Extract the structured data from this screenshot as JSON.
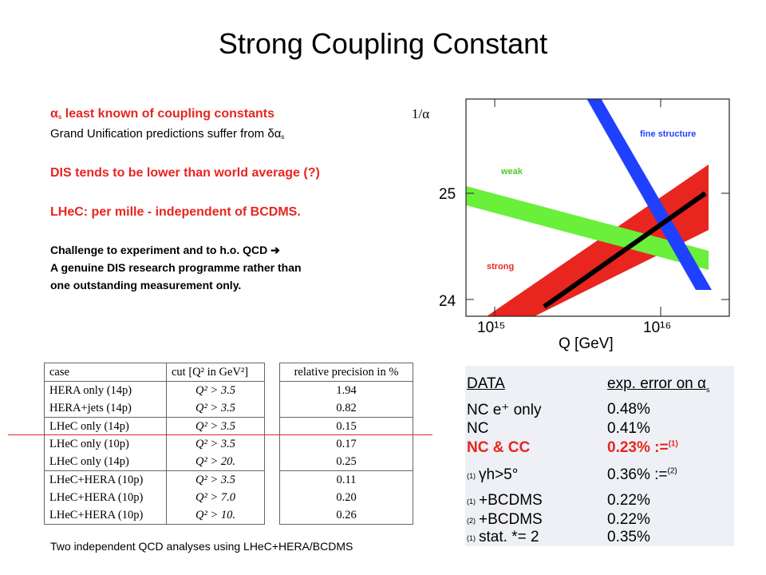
{
  "title": "Strong Coupling Constant",
  "left_text": {
    "line1": "least known of coupling constants",
    "line2": "Grand Unification predictions suffer from",
    "line3": "DIS tends to be lower than world average (?)",
    "line4": "LHeC: per mille  - independent of BCDMS.",
    "line5": "Challenge to experiment and to h.o. QCD",
    "line6": "A genuine DIS research programme rather than",
    "line7": "one outstanding measurement only."
  },
  "chart_data": {
    "type": "line",
    "ylabel": "1/α",
    "xlabel": "Q [GeV]",
    "xscale": "log",
    "x_ticks": [
      "10¹⁵",
      "10¹⁶"
    ],
    "y_ticks": [
      "25",
      "24"
    ],
    "series": [
      {
        "name": "fine structure",
        "color": "#2040ff"
      },
      {
        "name": "weak",
        "color": "#6aef3a"
      },
      {
        "name": "strong",
        "color": "#e8251f"
      }
    ]
  },
  "table1": {
    "headers": [
      "case",
      "cut [Q² in GeV²]"
    ],
    "rows": [
      [
        "HERA only (14p)",
        "Q² > 3.5"
      ],
      [
        "HERA+jets (14p)",
        "Q² > 3.5"
      ],
      [
        "LHeC only (14p)",
        "Q² > 3.5"
      ],
      [
        "LHeC only (10p)",
        "Q² > 3.5"
      ],
      [
        "LHeC only (14p)",
        "Q² > 20."
      ],
      [
        "LHeC+HERA (10p)",
        "Q² > 3.5"
      ],
      [
        "LHeC+HERA (10p)",
        "Q² > 7.0"
      ],
      [
        "LHeC+HERA (10p)",
        "Q² > 10."
      ]
    ]
  },
  "table2": {
    "header": "relative precision in %",
    "values": [
      "1.94",
      "0.82",
      "0.15",
      "0.17",
      "0.25",
      "0.11",
      "0.20",
      "0.26"
    ]
  },
  "caption": "Two independent QCD analyses using LHeC+HERA/BCDMS",
  "panel": {
    "h1": "DATA",
    "h2": "exp. error on α",
    "rows": [
      {
        "mark": "",
        "label": "NC e⁺ only",
        "value": "0.48%"
      },
      {
        "mark": "",
        "label": "NC",
        "value": "0.41%"
      },
      {
        "mark": "",
        "label": "NC & CC",
        "value": "0.23% :=",
        "sup": "(1)"
      },
      {
        "mark": "(1)",
        "label": "γh>5°",
        "value": "0.36% :=",
        "sup": "(2)"
      },
      {
        "mark": "(1)",
        "label": "+BCDMS",
        "value": "0.22%"
      },
      {
        "mark": "(2)",
        "label": "+BCDMS",
        "value": "0.22%"
      },
      {
        "mark": "(1)",
        "label": "stat. *= 2",
        "value": "0.35%"
      }
    ]
  },
  "colors": {
    "accent_red": "#e8251f",
    "blue": "#2040ff",
    "green": "#6aef3a"
  }
}
